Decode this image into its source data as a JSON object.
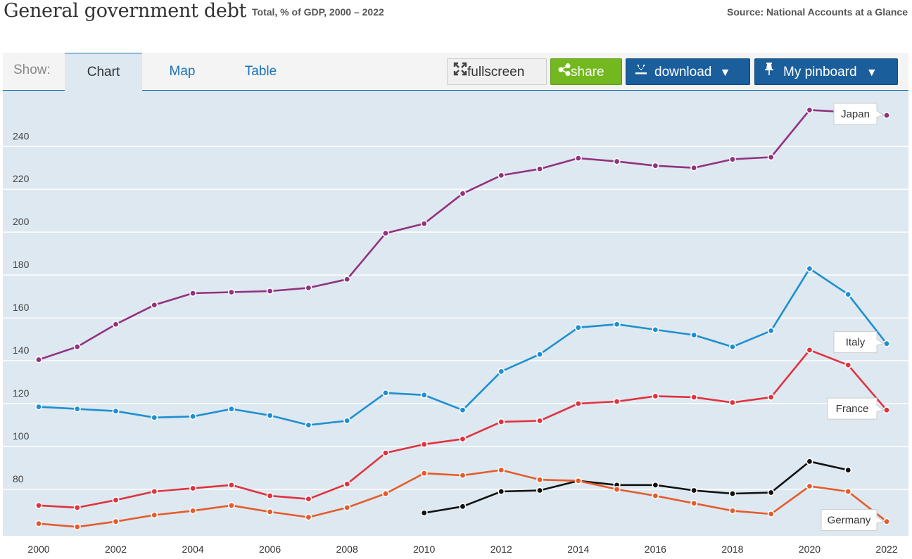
{
  "header": {
    "title": "General government debt",
    "subtitle": "Total, % of GDP, 2000 – 2022",
    "source": "Source: National Accounts at a Glance"
  },
  "toolbar": {
    "show_label": "Show:",
    "tabs": [
      {
        "label": "Chart",
        "active": true
      },
      {
        "label": "Map",
        "active": false
      },
      {
        "label": "Table",
        "active": false
      }
    ],
    "fullscreen_label": "fullscreen",
    "share_label": "share",
    "download_label": "download",
    "pinboard_label": "My pinboard",
    "dropdown_glyph": "▼"
  },
  "chart_data": {
    "type": "line",
    "x": [
      2000,
      2001,
      2002,
      2003,
      2004,
      2005,
      2006,
      2007,
      2008,
      2009,
      2010,
      2011,
      2012,
      2013,
      2014,
      2015,
      2016,
      2017,
      2018,
      2019,
      2020,
      2021,
      2022
    ],
    "xticks": [
      2000,
      2002,
      2004,
      2006,
      2008,
      2010,
      2012,
      2014,
      2016,
      2018,
      2020,
      2022
    ],
    "yticks": [
      80,
      100,
      120,
      140,
      160,
      180,
      200,
      220,
      240
    ],
    "ylim": [
      58,
      266
    ],
    "xlim": [
      2000,
      2022
    ],
    "grid": true,
    "series": [
      {
        "name": "Japan",
        "color": "#92327e",
        "values": [
          140.5,
          146.5,
          157,
          166,
          171.5,
          172,
          172.5,
          174,
          178,
          199.5,
          204,
          218,
          226.5,
          229.5,
          234.5,
          233,
          231,
          230,
          234,
          235,
          257,
          256,
          254.5
        ]
      },
      {
        "name": "Italy",
        "color": "#1f8fd1",
        "values": [
          118.5,
          117.5,
          116.5,
          113.5,
          114,
          117.5,
          114.5,
          110,
          112,
          125,
          124,
          117,
          135,
          143,
          155.5,
          157,
          154.5,
          152,
          146.5,
          154,
          183,
          171,
          148
        ]
      },
      {
        "name": "France",
        "color": "#e0323e",
        "values": [
          72.5,
          71.5,
          75,
          79,
          80.5,
          82,
          77,
          75.5,
          82.5,
          97,
          101,
          103.5,
          111.5,
          112,
          120,
          121,
          123.5,
          123,
          120.5,
          123,
          145,
          138,
          117
        ]
      },
      {
        "name": "",
        "color": "#111111",
        "values": [
          null,
          null,
          null,
          null,
          null,
          null,
          null,
          null,
          null,
          null,
          69,
          72,
          79,
          79.5,
          84,
          82,
          82,
          79.5,
          78,
          78.5,
          93,
          89,
          null
        ]
      },
      {
        "name": "Germany",
        "color": "#e55b2b",
        "values": [
          64,
          62.5,
          65,
          68,
          70,
          72.5,
          69.5,
          67,
          71.5,
          78,
          87.5,
          86.5,
          89,
          84.5,
          84,
          80,
          77,
          73.5,
          70,
          68.5,
          81.5,
          79,
          65
        ]
      }
    ]
  }
}
